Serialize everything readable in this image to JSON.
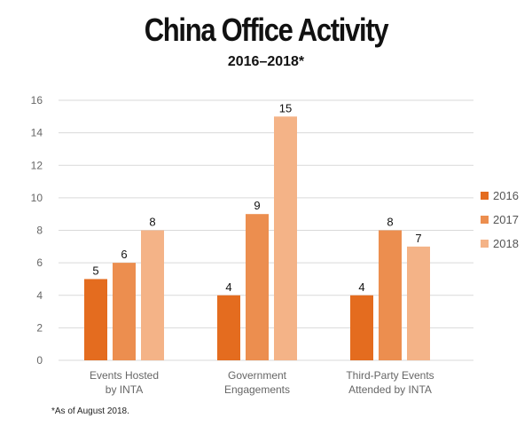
{
  "title": "China Office Activity",
  "subtitle": "2016–2018*",
  "footnote": "*As of August 2018.",
  "chart_data": {
    "type": "bar",
    "categories": [
      [
        "Events Hosted",
        "by INTA"
      ],
      [
        "Government",
        "Engagements"
      ],
      [
        "Third-Party Events",
        "Attended by INTA"
      ]
    ],
    "series": [
      {
        "name": "2016",
        "color": "#e46c1f",
        "values": [
          5,
          4,
          4
        ]
      },
      {
        "name": "2017",
        "color": "#ec8e4f",
        "values": [
          6,
          9,
          8
        ]
      },
      {
        "name": "2018",
        "color": "#f4b387",
        "values": [
          8,
          15,
          7
        ]
      }
    ],
    "ylim": [
      0,
      16
    ],
    "yticks": [
      0,
      2,
      4,
      6,
      8,
      10,
      12,
      14,
      16
    ],
    "grid": true,
    "legend_position": "right"
  }
}
